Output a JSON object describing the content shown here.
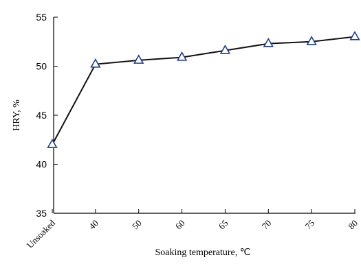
{
  "chart_data": {
    "type": "line",
    "title": "",
    "xlabel": "Soaking temperature, ℃",
    "ylabel": "HRY, %",
    "categories": [
      "Unsoaked",
      "40",
      "50",
      "60",
      "65",
      "70",
      "75",
      "80"
    ],
    "series": [
      {
        "values": [
          42.0,
          50.2,
          50.6,
          50.9,
          51.6,
          52.3,
          52.5,
          53.0
        ]
      }
    ],
    "ylim": [
      35,
      55
    ],
    "yticks": [
      35,
      40,
      45,
      50,
      55
    ],
    "grid": false,
    "marker": "triangle",
    "colors": {
      "line": "#111111",
      "marker": "#1f3d8f"
    }
  }
}
